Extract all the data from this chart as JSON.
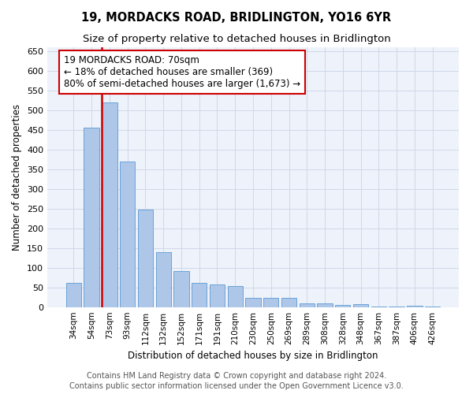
{
  "title": "19, MORDACKS ROAD, BRIDLINGTON, YO16 6YR",
  "subtitle": "Size of property relative to detached houses in Bridlington",
  "xlabel": "Distribution of detached houses by size in Bridlington",
  "ylabel": "Number of detached properties",
  "footer1": "Contains HM Land Registry data © Crown copyright and database right 2024.",
  "footer2": "Contains public sector information licensed under the Open Government Licence v3.0.",
  "categories": [
    "34sqm",
    "54sqm",
    "73sqm",
    "93sqm",
    "112sqm",
    "132sqm",
    "152sqm",
    "171sqm",
    "191sqm",
    "210sqm",
    "230sqm",
    "250sqm",
    "269sqm",
    "289sqm",
    "308sqm",
    "328sqm",
    "348sqm",
    "367sqm",
    "387sqm",
    "406sqm",
    "426sqm"
  ],
  "values": [
    62,
    457,
    520,
    370,
    248,
    140,
    93,
    62,
    58,
    55,
    25,
    25,
    25,
    11,
    11,
    6,
    8,
    3,
    3,
    5,
    3
  ],
  "bar_color": "#aec6e8",
  "bar_edge_color": "#5b9bd5",
  "highlight_bar_index": 2,
  "highlight_line_color": "#cc0000",
  "annotation_box_color": "#cc0000",
  "annotation_text": "19 MORDACKS ROAD: 70sqm\n← 18% of detached houses are smaller (369)\n80% of semi-detached houses are larger (1,673) →",
  "ylim": [
    0,
    660
  ],
  "yticks": [
    0,
    50,
    100,
    150,
    200,
    250,
    300,
    350,
    400,
    450,
    500,
    550,
    600,
    650
  ],
  "grid_color": "#d0d8e8",
  "background_color": "#eef2fa",
  "annotation_fontsize": 8.5,
  "title_fontsize": 10.5,
  "subtitle_fontsize": 9.5,
  "xlabel_fontsize": 8.5,
  "ylabel_fontsize": 8.5,
  "footer_fontsize": 7.0,
  "tick_fontsize": 7.5,
  "ytick_fontsize": 8.0
}
